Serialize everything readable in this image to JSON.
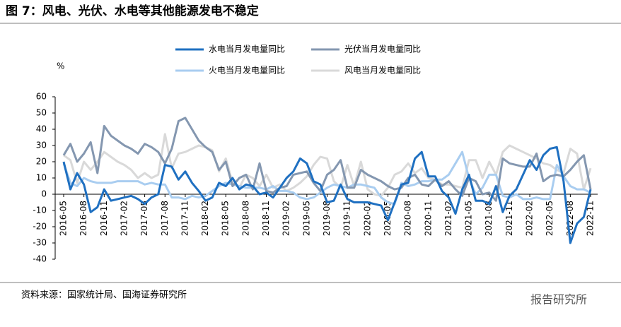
{
  "chart_data": {
    "type": "line",
    "title": "图 7：风电、光伏、水电等其他能源发电不稳定",
    "y_unit": "%",
    "source": "资料来源：国家统计局、国海证券研究所",
    "watermark": "报告研究所",
    "categories": [
      "2016-05",
      null,
      null,
      "2016-08",
      null,
      null,
      "2016-11",
      null,
      null,
      "2017-02",
      null,
      null,
      "2017-05",
      null,
      null,
      "2017-08",
      null,
      null,
      "2017-11",
      null,
      null,
      "2018-02",
      null,
      null,
      "2018-05",
      null,
      null,
      "2018-08",
      null,
      null,
      "2018-11",
      null,
      null,
      "2019-02",
      null,
      null,
      "2019-05",
      null,
      null,
      "2019-08",
      null,
      null,
      "2019-11",
      null,
      null,
      "2020-02",
      null,
      null,
      "2020-05",
      null,
      null,
      "2020-08",
      null,
      null,
      "2020-11",
      null,
      null,
      "2021-02",
      null,
      null,
      "2021-05",
      null,
      null,
      "2021-08",
      null,
      null,
      "2021-11",
      null,
      null,
      "2022-02",
      null,
      null,
      "2022-05",
      null,
      null,
      "2022-08",
      null,
      null,
      "2022-11"
    ],
    "series": [
      {
        "name": "水电当月发电量同比",
        "color": "#1f70c1",
        "width": 3,
        "values": [
          20,
          3,
          13,
          6,
          -11,
          -8,
          3,
          -4,
          -3,
          -2,
          -1,
          -3,
          -6,
          -2,
          0,
          18,
          17,
          9,
          14,
          7,
          2,
          -4,
          -2,
          7,
          5,
          10,
          3,
          6,
          5,
          0,
          1,
          -2,
          4,
          10,
          14,
          22,
          19,
          8,
          6,
          -5,
          -4,
          6,
          -3,
          -5,
          -5,
          -5,
          -6,
          -7,
          -16,
          -5,
          6,
          7,
          22,
          26,
          11,
          11,
          2,
          -2,
          -12,
          3,
          12,
          -4,
          -4,
          -6,
          5,
          -11,
          -1,
          3,
          12,
          21,
          15,
          24,
          28,
          29,
          8,
          -30,
          -18,
          -14,
          3
        ]
      },
      {
        "name": "光伏当月发电量同比",
        "color": "#8497b0",
        "width": 3,
        "values": [
          24,
          31,
          20,
          25,
          32,
          13,
          42,
          36,
          33,
          30,
          28,
          25,
          31,
          29,
          26,
          19,
          28,
          45,
          47,
          40,
          33,
          29,
          26,
          15,
          20,
          5,
          10,
          12,
          3,
          19,
          2,
          1,
          4,
          5,
          12,
          13,
          14,
          7,
          2,
          12,
          15,
          21,
          4,
          4,
          15,
          12,
          10,
          8,
          5,
          3,
          4,
          10,
          12,
          6,
          5,
          9,
          5,
          8,
          3,
          -1,
          10,
          8,
          0,
          1,
          -4,
          22,
          19,
          18,
          17,
          17,
          25,
          8,
          11,
          12,
          11,
          15,
          20,
          24,
          3
        ]
      },
      {
        "name": "火电当月发电量同比",
        "color": "#a9cdf0",
        "width": 3,
        "values": [
          19,
          7,
          5,
          10,
          8,
          7,
          7,
          7,
          8,
          8,
          8,
          8,
          6,
          7,
          6,
          6,
          -2,
          -2,
          -3,
          -1,
          -2,
          -1,
          2,
          5,
          7,
          6,
          5,
          4,
          4,
          4,
          3,
          5,
          2,
          2,
          1,
          -2,
          -3,
          -2,
          1,
          4,
          6,
          5,
          4,
          6,
          6,
          5,
          4,
          -2,
          -5,
          -6,
          7,
          5,
          6,
          8,
          8,
          9,
          9,
          12,
          19,
          26,
          10,
          0,
          4,
          12,
          12,
          -1,
          -2,
          0,
          -3,
          -3,
          -2,
          -3,
          -3,
          18,
          11,
          5,
          3,
          3,
          1
        ]
      },
      {
        "name": "风电当月发电量同比",
        "color": "#d9d9d9",
        "width": 3,
        "values": [
          24,
          21,
          7,
          20,
          15,
          20,
          26,
          23,
          20,
          18,
          15,
          10,
          13,
          10,
          12,
          37,
          16,
          25,
          26,
          28,
          30,
          29,
          27,
          14,
          22,
          7,
          4,
          12,
          10,
          5,
          12,
          4,
          6,
          2,
          4,
          7,
          11,
          18,
          23,
          22,
          8,
          4,
          18,
          5,
          20,
          3,
          0,
          -1,
          4,
          12,
          14,
          19,
          13,
          16,
          10,
          9,
          6,
          6,
          5,
          4,
          21,
          21,
          10,
          20,
          12,
          26,
          30,
          28,
          26,
          24,
          22,
          19,
          18,
          15,
          13,
          28,
          25,
          3,
          16
        ]
      }
    ],
    "ylim": [
      -40,
      60
    ],
    "yticks": [
      -40,
      -30,
      -20,
      -10,
      0,
      10,
      20,
      30,
      40,
      50,
      60
    ]
  }
}
